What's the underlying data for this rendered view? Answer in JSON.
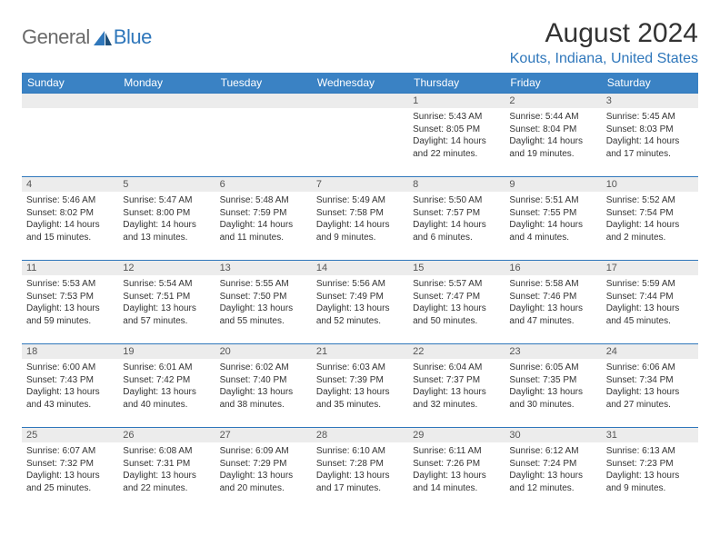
{
  "brand": {
    "part1": "General",
    "part2": "Blue"
  },
  "title": "August 2024",
  "location": "Kouts, Indiana, United States",
  "colors": {
    "header_bg": "#3a82c4",
    "accent": "#2f77bb",
    "daynum_bg": "#ececec",
    "text": "#333333",
    "logo_gray": "#6a6a6a"
  },
  "weekdays": [
    "Sunday",
    "Monday",
    "Tuesday",
    "Wednesday",
    "Thursday",
    "Friday",
    "Saturday"
  ],
  "weeks": [
    [
      {
        "day": "",
        "sunrise": "",
        "sunset": "",
        "daylight": ""
      },
      {
        "day": "",
        "sunrise": "",
        "sunset": "",
        "daylight": ""
      },
      {
        "day": "",
        "sunrise": "",
        "sunset": "",
        "daylight": ""
      },
      {
        "day": "",
        "sunrise": "",
        "sunset": "",
        "daylight": ""
      },
      {
        "day": "1",
        "sunrise": "Sunrise: 5:43 AM",
        "sunset": "Sunset: 8:05 PM",
        "daylight": "Daylight: 14 hours and 22 minutes."
      },
      {
        "day": "2",
        "sunrise": "Sunrise: 5:44 AM",
        "sunset": "Sunset: 8:04 PM",
        "daylight": "Daylight: 14 hours and 19 minutes."
      },
      {
        "day": "3",
        "sunrise": "Sunrise: 5:45 AM",
        "sunset": "Sunset: 8:03 PM",
        "daylight": "Daylight: 14 hours and 17 minutes."
      }
    ],
    [
      {
        "day": "4",
        "sunrise": "Sunrise: 5:46 AM",
        "sunset": "Sunset: 8:02 PM",
        "daylight": "Daylight: 14 hours and 15 minutes."
      },
      {
        "day": "5",
        "sunrise": "Sunrise: 5:47 AM",
        "sunset": "Sunset: 8:00 PM",
        "daylight": "Daylight: 14 hours and 13 minutes."
      },
      {
        "day": "6",
        "sunrise": "Sunrise: 5:48 AM",
        "sunset": "Sunset: 7:59 PM",
        "daylight": "Daylight: 14 hours and 11 minutes."
      },
      {
        "day": "7",
        "sunrise": "Sunrise: 5:49 AM",
        "sunset": "Sunset: 7:58 PM",
        "daylight": "Daylight: 14 hours and 9 minutes."
      },
      {
        "day": "8",
        "sunrise": "Sunrise: 5:50 AM",
        "sunset": "Sunset: 7:57 PM",
        "daylight": "Daylight: 14 hours and 6 minutes."
      },
      {
        "day": "9",
        "sunrise": "Sunrise: 5:51 AM",
        "sunset": "Sunset: 7:55 PM",
        "daylight": "Daylight: 14 hours and 4 minutes."
      },
      {
        "day": "10",
        "sunrise": "Sunrise: 5:52 AM",
        "sunset": "Sunset: 7:54 PM",
        "daylight": "Daylight: 14 hours and 2 minutes."
      }
    ],
    [
      {
        "day": "11",
        "sunrise": "Sunrise: 5:53 AM",
        "sunset": "Sunset: 7:53 PM",
        "daylight": "Daylight: 13 hours and 59 minutes."
      },
      {
        "day": "12",
        "sunrise": "Sunrise: 5:54 AM",
        "sunset": "Sunset: 7:51 PM",
        "daylight": "Daylight: 13 hours and 57 minutes."
      },
      {
        "day": "13",
        "sunrise": "Sunrise: 5:55 AM",
        "sunset": "Sunset: 7:50 PM",
        "daylight": "Daylight: 13 hours and 55 minutes."
      },
      {
        "day": "14",
        "sunrise": "Sunrise: 5:56 AM",
        "sunset": "Sunset: 7:49 PM",
        "daylight": "Daylight: 13 hours and 52 minutes."
      },
      {
        "day": "15",
        "sunrise": "Sunrise: 5:57 AM",
        "sunset": "Sunset: 7:47 PM",
        "daylight": "Daylight: 13 hours and 50 minutes."
      },
      {
        "day": "16",
        "sunrise": "Sunrise: 5:58 AM",
        "sunset": "Sunset: 7:46 PM",
        "daylight": "Daylight: 13 hours and 47 minutes."
      },
      {
        "day": "17",
        "sunrise": "Sunrise: 5:59 AM",
        "sunset": "Sunset: 7:44 PM",
        "daylight": "Daylight: 13 hours and 45 minutes."
      }
    ],
    [
      {
        "day": "18",
        "sunrise": "Sunrise: 6:00 AM",
        "sunset": "Sunset: 7:43 PM",
        "daylight": "Daylight: 13 hours and 43 minutes."
      },
      {
        "day": "19",
        "sunrise": "Sunrise: 6:01 AM",
        "sunset": "Sunset: 7:42 PM",
        "daylight": "Daylight: 13 hours and 40 minutes."
      },
      {
        "day": "20",
        "sunrise": "Sunrise: 6:02 AM",
        "sunset": "Sunset: 7:40 PM",
        "daylight": "Daylight: 13 hours and 38 minutes."
      },
      {
        "day": "21",
        "sunrise": "Sunrise: 6:03 AM",
        "sunset": "Sunset: 7:39 PM",
        "daylight": "Daylight: 13 hours and 35 minutes."
      },
      {
        "day": "22",
        "sunrise": "Sunrise: 6:04 AM",
        "sunset": "Sunset: 7:37 PM",
        "daylight": "Daylight: 13 hours and 32 minutes."
      },
      {
        "day": "23",
        "sunrise": "Sunrise: 6:05 AM",
        "sunset": "Sunset: 7:35 PM",
        "daylight": "Daylight: 13 hours and 30 minutes."
      },
      {
        "day": "24",
        "sunrise": "Sunrise: 6:06 AM",
        "sunset": "Sunset: 7:34 PM",
        "daylight": "Daylight: 13 hours and 27 minutes."
      }
    ],
    [
      {
        "day": "25",
        "sunrise": "Sunrise: 6:07 AM",
        "sunset": "Sunset: 7:32 PM",
        "daylight": "Daylight: 13 hours and 25 minutes."
      },
      {
        "day": "26",
        "sunrise": "Sunrise: 6:08 AM",
        "sunset": "Sunset: 7:31 PM",
        "daylight": "Daylight: 13 hours and 22 minutes."
      },
      {
        "day": "27",
        "sunrise": "Sunrise: 6:09 AM",
        "sunset": "Sunset: 7:29 PM",
        "daylight": "Daylight: 13 hours and 20 minutes."
      },
      {
        "day": "28",
        "sunrise": "Sunrise: 6:10 AM",
        "sunset": "Sunset: 7:28 PM",
        "daylight": "Daylight: 13 hours and 17 minutes."
      },
      {
        "day": "29",
        "sunrise": "Sunrise: 6:11 AM",
        "sunset": "Sunset: 7:26 PM",
        "daylight": "Daylight: 13 hours and 14 minutes."
      },
      {
        "day": "30",
        "sunrise": "Sunrise: 6:12 AM",
        "sunset": "Sunset: 7:24 PM",
        "daylight": "Daylight: 13 hours and 12 minutes."
      },
      {
        "day": "31",
        "sunrise": "Sunrise: 6:13 AM",
        "sunset": "Sunset: 7:23 PM",
        "daylight": "Daylight: 13 hours and 9 minutes."
      }
    ]
  ]
}
